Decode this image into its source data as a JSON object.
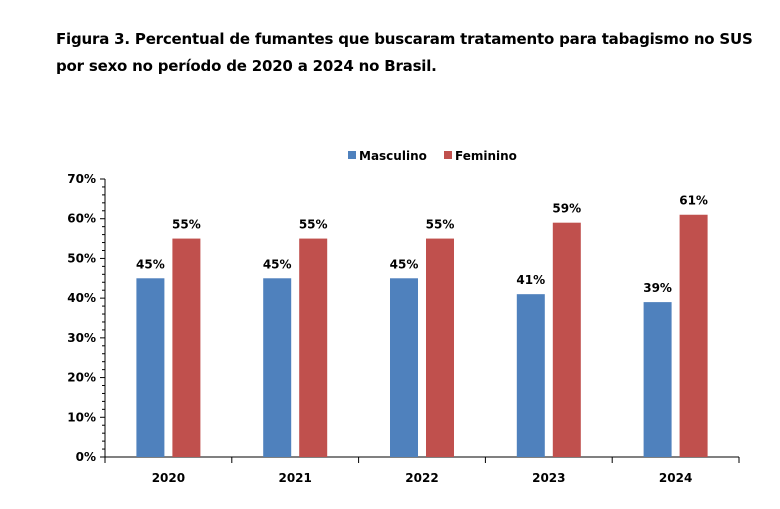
{
  "chart_data": {
    "type": "bar",
    "title": "Figura 3. Percentual de fumantes que buscaram tratamento para tabagismo no SUS por sexo no período de 2020 a 2024 no Brasil.",
    "categories": [
      "2020",
      "2021",
      "2022",
      "2023",
      "2024"
    ],
    "series": [
      {
        "name": "Masculino",
        "values": [
          45,
          45,
          45,
          41,
          39
        ],
        "color": "#4F81BD"
      },
      {
        "name": "Feminino",
        "values": [
          55,
          55,
          55,
          59,
          61
        ],
        "color": "#C0504D"
      }
    ],
    "xlabel": "",
    "ylabel": "",
    "ylim": [
      0,
      70
    ],
    "yticks": [
      "0%",
      "10%",
      "20%",
      "30%",
      "40%",
      "50%",
      "60%",
      "70%"
    ],
    "value_suffix": "%",
    "grid": false,
    "legend": "top"
  }
}
